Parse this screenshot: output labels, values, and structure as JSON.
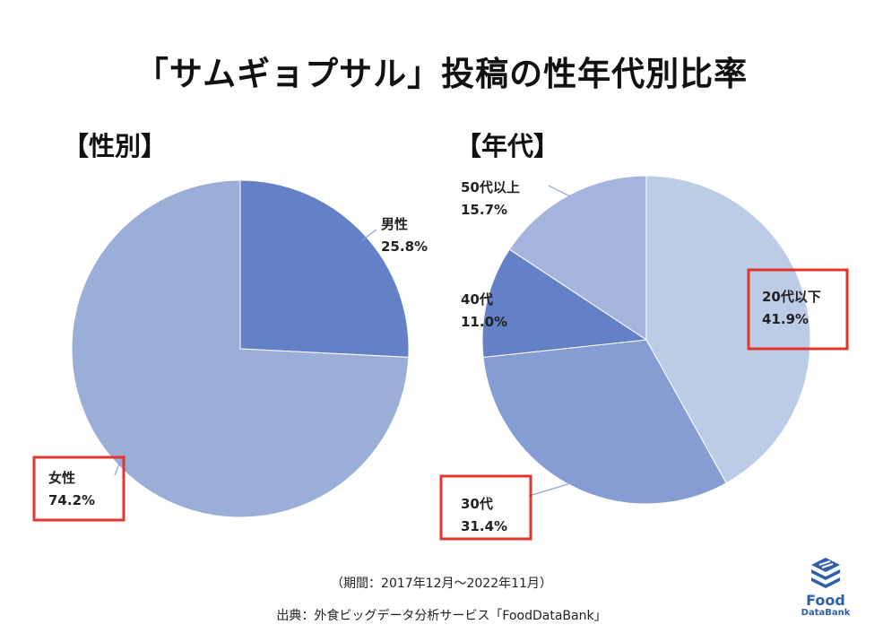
{
  "title": "「サムギョプサル」投稿の性年代別比率",
  "charts": {
    "gender": {
      "heading": "【性別】"
    },
    "age": {
      "heading": "【年代】"
    }
  },
  "chart_data": [
    {
      "type": "pie",
      "title": "【性別】",
      "categories": [
        "男性",
        "女性"
      ],
      "values": [
        25.8,
        74.2
      ],
      "value_labels": [
        "25.8%",
        "74.2%"
      ],
      "colors": [
        "#6480c6",
        "#9aaed8"
      ],
      "highlighted": [
        "女性"
      ]
    },
    {
      "type": "pie",
      "title": "【年代】",
      "categories": [
        "20代以下",
        "30代",
        "40代",
        "50代以上"
      ],
      "values": [
        41.9,
        31.4,
        11.0,
        15.7
      ],
      "value_labels": [
        "41.9%",
        "31.4%",
        "11.0%",
        "15.7%"
      ],
      "colors": [
        "#bccbe6",
        "#869dd3",
        "#6480c6",
        "#a4b4dc"
      ],
      "highlighted": [
        "20代以下",
        "30代"
      ]
    }
  ],
  "highlight_color": "#e0342c",
  "footer": {
    "period": "（期間：2017年12月〜2022年11月）",
    "source": "出典：外食ビッグデータ分析サービス「FoodDataBank」"
  },
  "logo": {
    "icon": "stacked-plates-icon",
    "word": "Food",
    "sub": "DataBank"
  }
}
